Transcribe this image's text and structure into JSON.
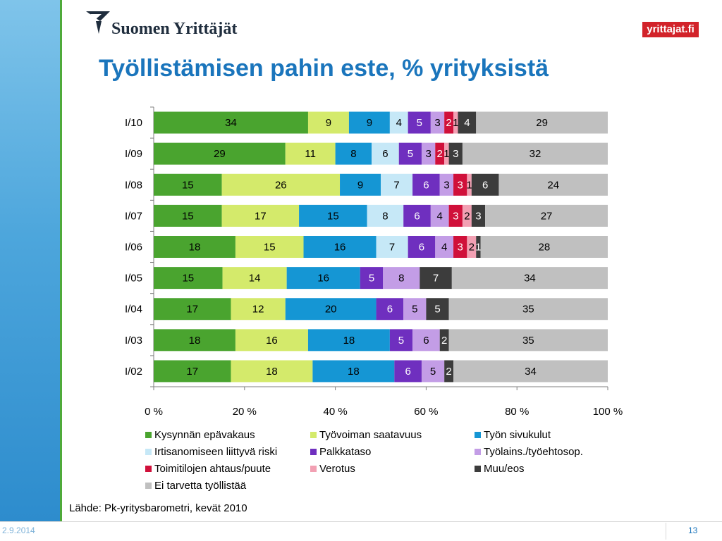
{
  "header": {
    "logo_text": "Suomen Yrittäjät",
    "brand_badge": "yrittajat.fi",
    "title": "Työllistämisen pahin este, % yrityksistä"
  },
  "chart_data": {
    "type": "bar",
    "orientation": "horizontal",
    "stacked": "percent",
    "categories": [
      "I/10",
      "I/09",
      "I/08",
      "I/07",
      "I/06",
      "I/05",
      "I/04",
      "I/03",
      "I/02"
    ],
    "xlim": [
      0,
      100
    ],
    "x_ticks": [
      "0 %",
      "20 %",
      "40 %",
      "60 %",
      "80 %",
      "100 %"
    ],
    "grid": false,
    "legend_position": "bottom",
    "series": [
      {
        "name": "Kysynnän epävakaus",
        "color": "#4aa42f",
        "values": [
          34,
          29,
          15,
          15,
          18,
          15,
          17,
          18,
          17
        ]
      },
      {
        "name": "Työvoiman saatavuus",
        "color": "#d4ea6b",
        "values": [
          9,
          11,
          26,
          17,
          15,
          14,
          12,
          16,
          18
        ]
      },
      {
        "name": "Työn sivukulut",
        "color": "#1596d4",
        "values": [
          9,
          8,
          9,
          15,
          16,
          16,
          20,
          18,
          18
        ]
      },
      {
        "name": "Irtisanomiseen liittyvä riski",
        "color": "#c6e8f7",
        "values": [
          4,
          6,
          7,
          8,
          7,
          0,
          0,
          0,
          0
        ]
      },
      {
        "name": "Palkkataso",
        "color": "#6f2fbf",
        "values": [
          5,
          5,
          6,
          6,
          6,
          5,
          6,
          5,
          6
        ]
      },
      {
        "name": "Työlains./työehtosop.",
        "color": "#c39de6",
        "values": [
          3,
          3,
          3,
          4,
          4,
          8,
          5,
          6,
          5
        ]
      },
      {
        "name": "Toimitilojen ahtaus/puute",
        "color": "#d0103a",
        "values": [
          2,
          2,
          3,
          3,
          3,
          0,
          0,
          0,
          0
        ]
      },
      {
        "name": "Verotus",
        "color": "#f2a0b3",
        "values": [
          1,
          1,
          1,
          2,
          2,
          0,
          0,
          0,
          0
        ]
      },
      {
        "name": "Muu/eos",
        "color": "#3c3c3c",
        "values": [
          4,
          3,
          6,
          3,
          1,
          7,
          5,
          2,
          2
        ]
      },
      {
        "name": "Ei tarvetta työllistää",
        "color": "#c0c0c0",
        "values": [
          29,
          32,
          24,
          27,
          28,
          34,
          35,
          35,
          34
        ]
      }
    ]
  },
  "source": "Lähde: Pk-yritysbarometri, kevät 2010",
  "footer": {
    "date": "2.9.2014",
    "page": "13"
  }
}
